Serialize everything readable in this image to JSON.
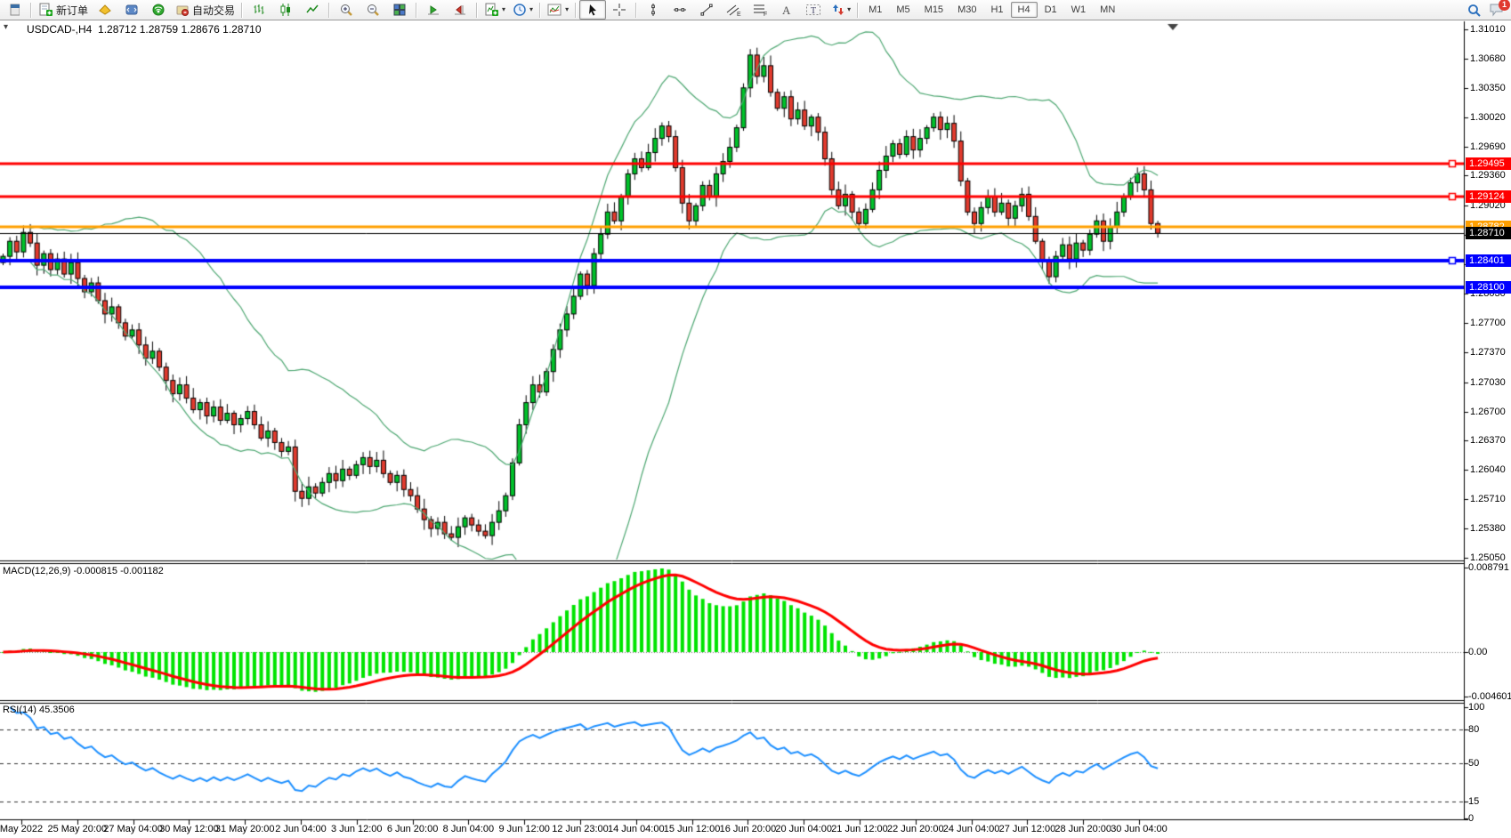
{
  "toolbar": {
    "groups": [
      [
        {
          "icon": "window-sliver",
          "name": "window"
        }
      ],
      [
        {
          "icon": "new-order",
          "label": "新订单",
          "name": "new-order"
        },
        {
          "icon": "profiles",
          "name": "profiles"
        },
        {
          "icon": "metaeditor",
          "name": "metaeditor"
        },
        {
          "icon": "community",
          "name": "mql-community"
        },
        {
          "icon": "autotrading",
          "label": "自动交易",
          "name": "autotrading"
        }
      ],
      [
        {
          "icon": "bar-chart",
          "name": "bar-chart-mode"
        },
        {
          "icon": "candle-chart",
          "name": "candlestick-mode"
        },
        {
          "icon": "line-chart",
          "name": "line-chart-mode"
        }
      ],
      [
        {
          "icon": "zoom-in",
          "name": "zoom-in"
        },
        {
          "icon": "zoom-out",
          "name": "zoom-out"
        },
        {
          "icon": "tile-windows",
          "name": "tile-windows"
        }
      ],
      [
        {
          "icon": "auto-scroll",
          "name": "auto-scroll"
        },
        {
          "icon": "chart-shift",
          "name": "chart-shift"
        }
      ],
      [
        {
          "icon": "new-chart",
          "caret": true,
          "name": "new-chart"
        },
        {
          "icon": "clock",
          "caret": true,
          "name": "period-converter"
        }
      ],
      [
        {
          "icon": "indicators",
          "caret": true,
          "name": "indicators-list"
        }
      ],
      [
        {
          "icon": "cursor",
          "active": true,
          "name": "cursor-tool"
        },
        {
          "icon": "crosshair",
          "name": "crosshair-tool"
        }
      ],
      [
        {
          "icon": "vertical-line",
          "name": "vertical-line-tool"
        },
        {
          "icon": "horizontal-line",
          "name": "horizontal-line-tool"
        },
        {
          "icon": "trendline",
          "name": "trendline-tool"
        },
        {
          "icon": "channel",
          "name": "equidistant-channel-tool"
        },
        {
          "icon": "fibonacci",
          "name": "fibonacci-tool"
        },
        {
          "icon": "text",
          "name": "text-tool"
        },
        {
          "icon": "text-label",
          "name": "text-label-tool"
        },
        {
          "icon": "arrows",
          "caret": true,
          "name": "arrows-tool"
        }
      ]
    ],
    "timeframes": [
      "M1",
      "M5",
      "M15",
      "M30",
      "H1",
      "H4",
      "D1",
      "W1",
      "MN"
    ],
    "active_timeframe": "H4",
    "right": [
      {
        "icon": "search",
        "name": "search"
      },
      {
        "icon": "chat",
        "badge": "1",
        "name": "chat"
      }
    ]
  },
  "chart_header": {
    "symbol": "USDCAD-,H4",
    "ohlc": "1.28712 1.28759 1.28676 1.28710"
  },
  "chart_data": {
    "type": "candlestick",
    "symbol": "USDCAD-",
    "timeframe": "H4",
    "first_open": 1.2838,
    "closes": [
      1.2845,
      1.2862,
      1.285,
      1.2872,
      1.286,
      1.2835,
      1.2848,
      1.283,
      1.2842,
      1.2825,
      1.2838,
      1.282,
      1.2805,
      1.2815,
      1.2795,
      1.278,
      1.2788,
      1.277,
      1.2755,
      1.2762,
      1.2745,
      1.273,
      1.2738,
      1.272,
      1.2705,
      1.269,
      1.27,
      1.2685,
      1.2672,
      1.268,
      1.2665,
      1.2675,
      1.266,
      1.2668,
      1.2655,
      1.2662,
      1.267,
      1.2655,
      1.264,
      1.2648,
      1.2635,
      1.2625,
      1.263,
      1.258,
      1.2572,
      1.2585,
      1.2578,
      1.259,
      1.26,
      1.2592,
      1.2605,
      1.2598,
      1.261,
      1.2618,
      1.2608,
      1.2615,
      1.26,
      1.259,
      1.2598,
      1.2582,
      1.2575,
      1.256,
      1.2548,
      1.2538,
      1.2545,
      1.2532,
      1.2528,
      1.254,
      1.255,
      1.2542,
      1.2535,
      1.253,
      1.2545,
      1.2558,
      1.2575,
      1.2612,
      1.2655,
      1.268,
      1.27,
      1.2692,
      1.2715,
      1.274,
      1.2762,
      1.278,
      1.28,
      1.2825,
      1.2812,
      1.2848,
      1.287,
      1.2895,
      1.2885,
      1.2912,
      1.2938,
      1.2955,
      1.2945,
      1.2962,
      1.2978,
      1.2992,
      1.298,
      1.2945,
      1.2905,
      1.2885,
      1.2902,
      1.2925,
      1.2912,
      1.2938,
      1.2952,
      1.2968,
      1.299,
      1.3035,
      1.3072,
      1.3048,
      1.306,
      1.303,
      1.3012,
      1.3025,
      1.3,
      1.301,
      1.2992,
      1.3002,
      1.2985,
      1.2955,
      1.292,
      1.2902,
      1.2915,
      1.2895,
      1.2882,
      1.2898,
      1.292,
      1.2942,
      1.2958,
      1.2972,
      1.296,
      1.298,
      1.2965,
      1.2978,
      1.299,
      1.3002,
      1.2988,
      1.2995,
      1.2975,
      1.293,
      1.2895,
      1.2882,
      1.29,
      1.2912,
      1.2895,
      1.2905,
      1.2888,
      1.2902,
      1.2915,
      1.289,
      1.2862,
      1.284,
      1.2822,
      1.2845,
      1.2858,
      1.2842,
      1.286,
      1.2852,
      1.287,
      1.2885,
      1.2862,
      1.2878,
      1.2895,
      1.2912,
      1.2928,
      1.2938,
      1.292,
      1.2882,
      1.2871
    ],
    "price_axis_ticks": [
      "1.31010",
      "1.30680",
      "1.30350",
      "1.30020",
      "1.29690",
      "1.29360",
      "1.29020",
      "1.28690",
      "1.28360",
      "1.28030",
      "1.27700",
      "1.27370",
      "1.27030",
      "1.26700",
      "1.26370",
      "1.26040",
      "1.25710",
      "1.25380",
      "1.25050"
    ],
    "time_axis_labels": [
      "May 2022",
      "25 May 20:00",
      "27 May 04:00",
      "30 May 12:00",
      "31 May 20:00",
      "2 Jun 04:00",
      "3 Jun 12:00",
      "6 Jun 20:00",
      "8 Jun 04:00",
      "9 Jun 12:00",
      "12 Jun 23:00",
      "14 Jun 04:00",
      "15 Jun 12:00",
      "16 Jun 20:00",
      "20 Jun 04:00",
      "21 Jun 12:00",
      "22 Jun 20:00",
      "24 Jun 04:00",
      "27 Jun 12:00",
      "28 Jun 20:00",
      "30 Jun 04:00"
    ],
    "hlines": [
      {
        "price": 1.29495,
        "label": "1.29495",
        "color": "#ff0000",
        "width": 3,
        "end_marker": true
      },
      {
        "price": 1.29124,
        "label": "1.29124",
        "color": "#ff0000",
        "width": 3,
        "end_marker": true
      },
      {
        "price": 1.28782,
        "label": "1.28782",
        "color": "#ff9f00",
        "width": 3,
        "end_marker": false
      },
      {
        "price": 1.28401,
        "label": "1.28401",
        "color": "#0000ff",
        "width": 4,
        "end_marker": true
      },
      {
        "price": 1.281,
        "label": "1.28100",
        "color": "#0000ff",
        "width": 4,
        "end_marker": false
      }
    ],
    "current_price": {
      "value": "1.28710",
      "price": 1.2871,
      "badge_color": "#000000"
    },
    "bollinger": {
      "period": 20,
      "deviation": 2
    },
    "macd": {
      "label": "MACD(12,26,9) -0.000815 -0.001182",
      "fast": 12,
      "slow": 26,
      "signal": 9,
      "axis_labels": [
        {
          "text": "0.008791",
          "value": 0.008791
        },
        {
          "text": "0.00",
          "value": 0
        },
        {
          "text": "-0.004601",
          "value": -0.004601
        }
      ]
    },
    "rsi": {
      "label": "RSI(14) 45.3506",
      "period": 14,
      "axis_labels": [
        {
          "text": "100",
          "value": 100
        },
        {
          "text": "80",
          "value": 80
        },
        {
          "text": "50",
          "value": 50
        },
        {
          "text": "15",
          "value": 15
        },
        {
          "text": "0",
          "value": 0
        }
      ],
      "dashed_levels": [
        80,
        50,
        15
      ]
    }
  },
  "colors": {
    "up_candle": "#00C22A",
    "down_candle": "#E23B2E",
    "candle_border": "#000000",
    "bollinger": "#4FA873",
    "macd_hist": "#00E400",
    "macd_signal": "#FF0000",
    "rsi_line": "#1E90FF",
    "axis_line": "#000000",
    "red_level": "#ff0000",
    "orange_level": "#ff9f00",
    "blue_level": "#0000ff"
  }
}
